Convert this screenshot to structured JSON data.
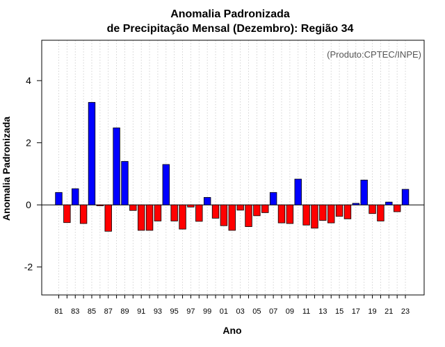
{
  "chart_data": {
    "type": "bar",
    "title": "Anomalia Padronizada",
    "subtitle": "de Precipitação Mensal (Dezembro): Região 34",
    "xlabel": "Ano",
    "ylabel": "Anomalia Padronizada",
    "annotation": "(Produto:CPTEC/INPE)",
    "ylim": [
      -2.9,
      5.3
    ],
    "yticks": [
      -2,
      0,
      2,
      4
    ],
    "ytick_labels": [
      "-2",
      "0",
      "2",
      "4"
    ],
    "xtick_labels": [
      "81",
      "83",
      "85",
      "87",
      "89",
      "91",
      "93",
      "95",
      "97",
      "99",
      "01",
      "03",
      "05",
      "07",
      "09",
      "11",
      "13",
      "15",
      "17",
      "19",
      "21",
      "23"
    ],
    "grid": "vertical dotted",
    "colors": {
      "positive": "#0000ff",
      "negative": "#ff0000",
      "zero_line": "#000000",
      "grid": "#c8c8c8"
    },
    "categories": [
      "1981",
      "1982",
      "1983",
      "1984",
      "1985",
      "1986",
      "1987",
      "1988",
      "1989",
      "1990",
      "1991",
      "1992",
      "1993",
      "1994",
      "1995",
      "1996",
      "1997",
      "1998",
      "1999",
      "2000",
      "2001",
      "2002",
      "2003",
      "2004",
      "2005",
      "2006",
      "2007",
      "2008",
      "2009",
      "2010",
      "2011",
      "2012",
      "2013",
      "2014",
      "2015",
      "2016",
      "2017",
      "2018",
      "2019",
      "2020",
      "2021",
      "2022",
      "2023"
    ],
    "values": [
      0.4,
      -0.57,
      0.52,
      -0.6,
      3.3,
      -0.03,
      -0.85,
      2.48,
      1.4,
      -0.18,
      -0.82,
      -0.82,
      -0.52,
      1.3,
      -0.52,
      -0.78,
      -0.07,
      -0.53,
      0.24,
      -0.43,
      -0.67,
      -0.82,
      -0.17,
      -0.7,
      -0.35,
      -0.25,
      0.4,
      -0.58,
      -0.6,
      0.83,
      -0.65,
      -0.75,
      -0.5,
      -0.58,
      -0.37,
      -0.45,
      0.05,
      0.8,
      -0.28,
      -0.52,
      0.09,
      -0.22,
      0.5
    ]
  }
}
